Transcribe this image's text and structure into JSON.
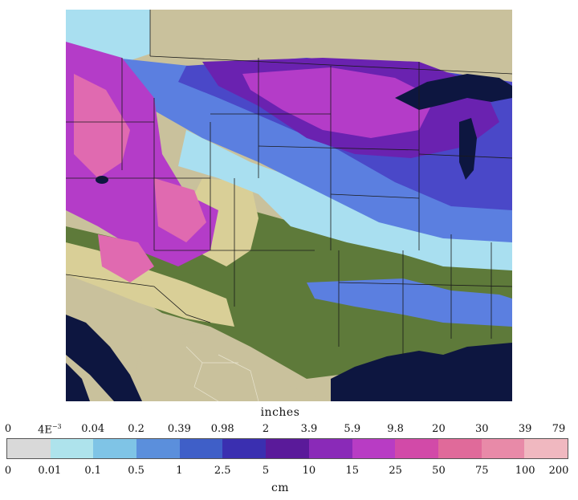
{
  "legend": {
    "inches_title": "inches",
    "cm_title": "cm",
    "inches_ticks": [
      "0",
      "4E-3",
      "0.04",
      "0.2",
      "0.39",
      "0.98",
      "2",
      "3.9",
      "5.9",
      "9.8",
      "20",
      "30",
      "39",
      "79"
    ],
    "cm_ticks": [
      "0",
      "0.01",
      "0.1",
      "0.5",
      "1",
      "2.5",
      "5",
      "10",
      "15",
      "25",
      "50",
      "75",
      "100",
      "200"
    ],
    "colors": [
      "#d9d9d9",
      "#aee3ec",
      "#7fc4e6",
      "#5b8fdc",
      "#3f5fc8",
      "#3a2fb0",
      "#5a1a9a",
      "#8a2ab8",
      "#b83cc4",
      "#d24aa8",
      "#e06a9a",
      "#e88aa8",
      "#f0b8c0"
    ]
  },
  "map": {
    "colors": {
      "land": "#c9c19c",
      "water": "#0d1640",
      "no_snow": "#5e7a3a",
      "trace": "#d9cf97",
      "light_blue": "#a9dff0",
      "blue": "#5b7fe0",
      "deep_blue": "#4a48c8",
      "purple": "#6a22b0",
      "magenta": "#b43cc8",
      "pink": "#e06ab0",
      "border": "#1a1a1a"
    }
  }
}
